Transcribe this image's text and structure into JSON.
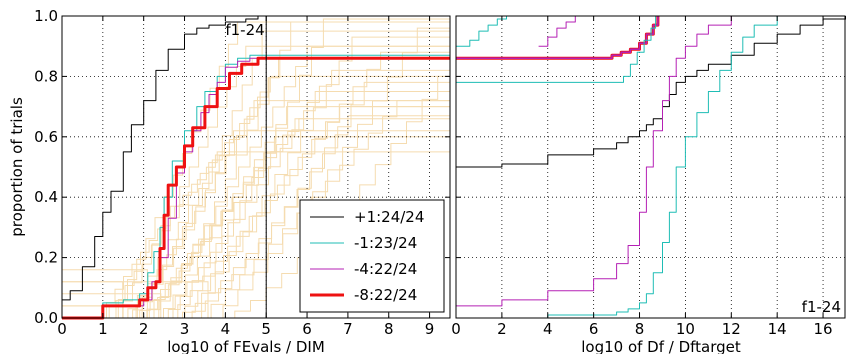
{
  "chart_data": [
    {
      "type": "line",
      "panel": "left",
      "annotation": "f1-24",
      "xlabel": "log10 of FEvals / DIM",
      "ylabel": "proportion of trials",
      "xlim": [
        0,
        9.5
      ],
      "ylim": [
        0,
        1
      ],
      "xticks": [
        0,
        1,
        2,
        3,
        4,
        5,
        6,
        7,
        8,
        9
      ],
      "yticks": [
        0.0,
        0.2,
        0.4,
        0.6,
        0.8,
        1.0
      ],
      "ytick_labels": [
        "0.0",
        "0.2",
        "0.4",
        "0.6",
        "0.8",
        "1.0"
      ],
      "grid": true,
      "vertical_marker_x": 5,
      "legend_position": "lower-right",
      "series": [
        {
          "name": "+1:24/24",
          "color": "#000000",
          "width": 1,
          "x": [
            0,
            0.2,
            0.5,
            0.8,
            1.0,
            1.2,
            1.5,
            1.7,
            2.0,
            2.3,
            2.6,
            3.0,
            3.3,
            3.6,
            4.0,
            4.5,
            4.8,
            5.0,
            9.5
          ],
          "y": [
            0.06,
            0.09,
            0.17,
            0.27,
            0.35,
            0.42,
            0.55,
            0.64,
            0.72,
            0.82,
            0.89,
            0.94,
            0.96,
            0.97,
            0.98,
            0.99,
            1.0,
            1.0,
            1.0
          ]
        },
        {
          "name": "-1:23/24",
          "color": "#1fbdb5",
          "width": 1,
          "x": [
            0,
            0.7,
            1.0,
            1.5,
            1.9,
            2.1,
            2.25,
            2.4,
            2.5,
            2.7,
            3.0,
            3.3,
            3.5,
            3.8,
            4.0,
            4.3,
            4.6,
            5.0,
            9.5
          ],
          "y": [
            0.0,
            0.0,
            0.05,
            0.06,
            0.08,
            0.15,
            0.22,
            0.3,
            0.4,
            0.52,
            0.62,
            0.7,
            0.75,
            0.8,
            0.84,
            0.86,
            0.87,
            0.87,
            0.87
          ]
        },
        {
          "name": "-4:22/24",
          "color": "#b520b5",
          "width": 1,
          "x": [
            0,
            0.8,
            1.0,
            1.5,
            2.0,
            2.2,
            2.4,
            2.6,
            2.8,
            3.0,
            3.2,
            3.4,
            3.6,
            3.8,
            4.0,
            4.3,
            4.6,
            5.0,
            9.5
          ],
          "y": [
            0.0,
            0.0,
            0.04,
            0.04,
            0.06,
            0.12,
            0.2,
            0.33,
            0.48,
            0.55,
            0.62,
            0.68,
            0.74,
            0.78,
            0.83,
            0.85,
            0.86,
            0.86,
            0.86
          ]
        },
        {
          "name": "-8:22/24",
          "color": "#ee1111",
          "width": 3,
          "x": [
            0,
            0.75,
            1.0,
            1.6,
            1.9,
            2.1,
            2.3,
            2.4,
            2.5,
            2.6,
            2.8,
            3.0,
            3.2,
            3.5,
            3.8,
            4.1,
            4.4,
            4.8,
            5.0,
            9.5
          ],
          "y": [
            0.0,
            0.0,
            0.04,
            0.04,
            0.06,
            0.1,
            0.12,
            0.23,
            0.34,
            0.44,
            0.5,
            0.57,
            0.63,
            0.7,
            0.76,
            0.81,
            0.84,
            0.86,
            0.86,
            0.86
          ]
        }
      ]
    },
    {
      "type": "line",
      "panel": "right",
      "annotation": "f1-24",
      "xlabel": "log10 of Df / Dftarget",
      "xlim": [
        0,
        17
      ],
      "ylim": [
        0,
        1
      ],
      "xticks": [
        0,
        2,
        4,
        6,
        8,
        10,
        12,
        14,
        16
      ],
      "grid": true,
      "series": [
        {
          "name": "+1:24/24",
          "color": "#000000",
          "width": 1,
          "x": [
            0,
            2,
            4,
            6,
            7,
            7.5,
            8,
            8.3,
            8.6,
            9.0,
            9.3,
            9.6,
            10.0,
            10.5,
            11,
            12,
            13,
            14,
            15,
            16,
            17
          ],
          "y": [
            0.5,
            0.51,
            0.54,
            0.56,
            0.58,
            0.6,
            0.62,
            0.64,
            0.66,
            0.7,
            0.74,
            0.78,
            0.8,
            0.82,
            0.84,
            0.87,
            0.91,
            0.94,
            0.97,
            0.99,
            1.0
          ]
        },
        {
          "name": "-1:23/24",
          "color": "#1fbdb5",
          "width": 1,
          "x": [
            0,
            4,
            6,
            7,
            7.5,
            8,
            8.3,
            8.6,
            9.0,
            9.3,
            9.6,
            10,
            10.5,
            11,
            11.5,
            12,
            12.5,
            13,
            14
          ],
          "y": [
            0.0,
            0.01,
            0.01,
            0.02,
            0.03,
            0.05,
            0.08,
            0.15,
            0.25,
            0.35,
            0.5,
            0.6,
            0.68,
            0.75,
            0.82,
            0.88,
            0.93,
            0.97,
            1.0
          ]
        },
        {
          "name": "-4:22/24",
          "color": "#b520b5",
          "width": 1,
          "x": [
            0,
            2,
            4,
            6,
            7,
            7.5,
            8,
            8.3,
            8.6,
            9.0,
            9.3,
            9.6,
            10,
            10.5,
            11,
            12
          ],
          "y": [
            0.04,
            0.06,
            0.09,
            0.13,
            0.18,
            0.24,
            0.35,
            0.5,
            0.62,
            0.72,
            0.8,
            0.86,
            0.9,
            0.94,
            0.97,
            1.0
          ]
        },
        {
          "name": "-8:22/24",
          "color": "#ee1111",
          "width": 3,
          "x": [
            0,
            6.4,
            6.8,
            7.2,
            7.6,
            8.0,
            8.3,
            8.6,
            8.8
          ],
          "y": [
            0.86,
            0.86,
            0.87,
            0.88,
            0.89,
            0.91,
            0.94,
            0.97,
            1.0
          ]
        },
        {
          "name": "-8:22/24 overlay",
          "color": "#b520b5",
          "width": 1.5,
          "x": [
            0,
            6.4,
            6.8,
            7.2,
            7.6,
            8.0,
            8.3,
            8.6,
            8.8
          ],
          "y": [
            0.86,
            0.86,
            0.87,
            0.88,
            0.89,
            0.91,
            0.94,
            0.97,
            1.0
          ]
        },
        {
          "name": "-1 upper",
          "color": "#1fbdb5",
          "width": 1,
          "x": [
            0,
            4,
            6,
            7.3,
            7.6,
            7.9,
            8.2,
            8.5,
            8.7
          ],
          "y": [
            0.78,
            0.78,
            0.78,
            0.8,
            0.84,
            0.88,
            0.92,
            0.96,
            1.0
          ]
        },
        {
          "name": "top-left cyan",
          "color": "#1fbdb5",
          "width": 1,
          "x": [
            0,
            0.6,
            1.0,
            1.4,
            1.8,
            2.2
          ],
          "y": [
            0.9,
            0.92,
            0.95,
            0.97,
            0.99,
            1.0
          ]
        },
        {
          "name": "top-mid magenta",
          "color": "#b520b5",
          "width": 1,
          "x": [
            3.6,
            4.0,
            4.4,
            4.8,
            5.2
          ],
          "y": [
            0.9,
            0.93,
            0.96,
            0.98,
            1.0
          ]
        }
      ]
    }
  ],
  "legend": {
    "entries": [
      {
        "label": "+1:24/24",
        "color": "#000000",
        "width": 1
      },
      {
        "label": "-1:23/24",
        "color": "#1fbdb5",
        "width": 1
      },
      {
        "label": "-4:22/24",
        "color": "#b520b5",
        "width": 1
      },
      {
        "label": "-8:22/24",
        "color": "#ee1111",
        "width": 3
      }
    ]
  },
  "background_lines_color": "#f5dcb0"
}
